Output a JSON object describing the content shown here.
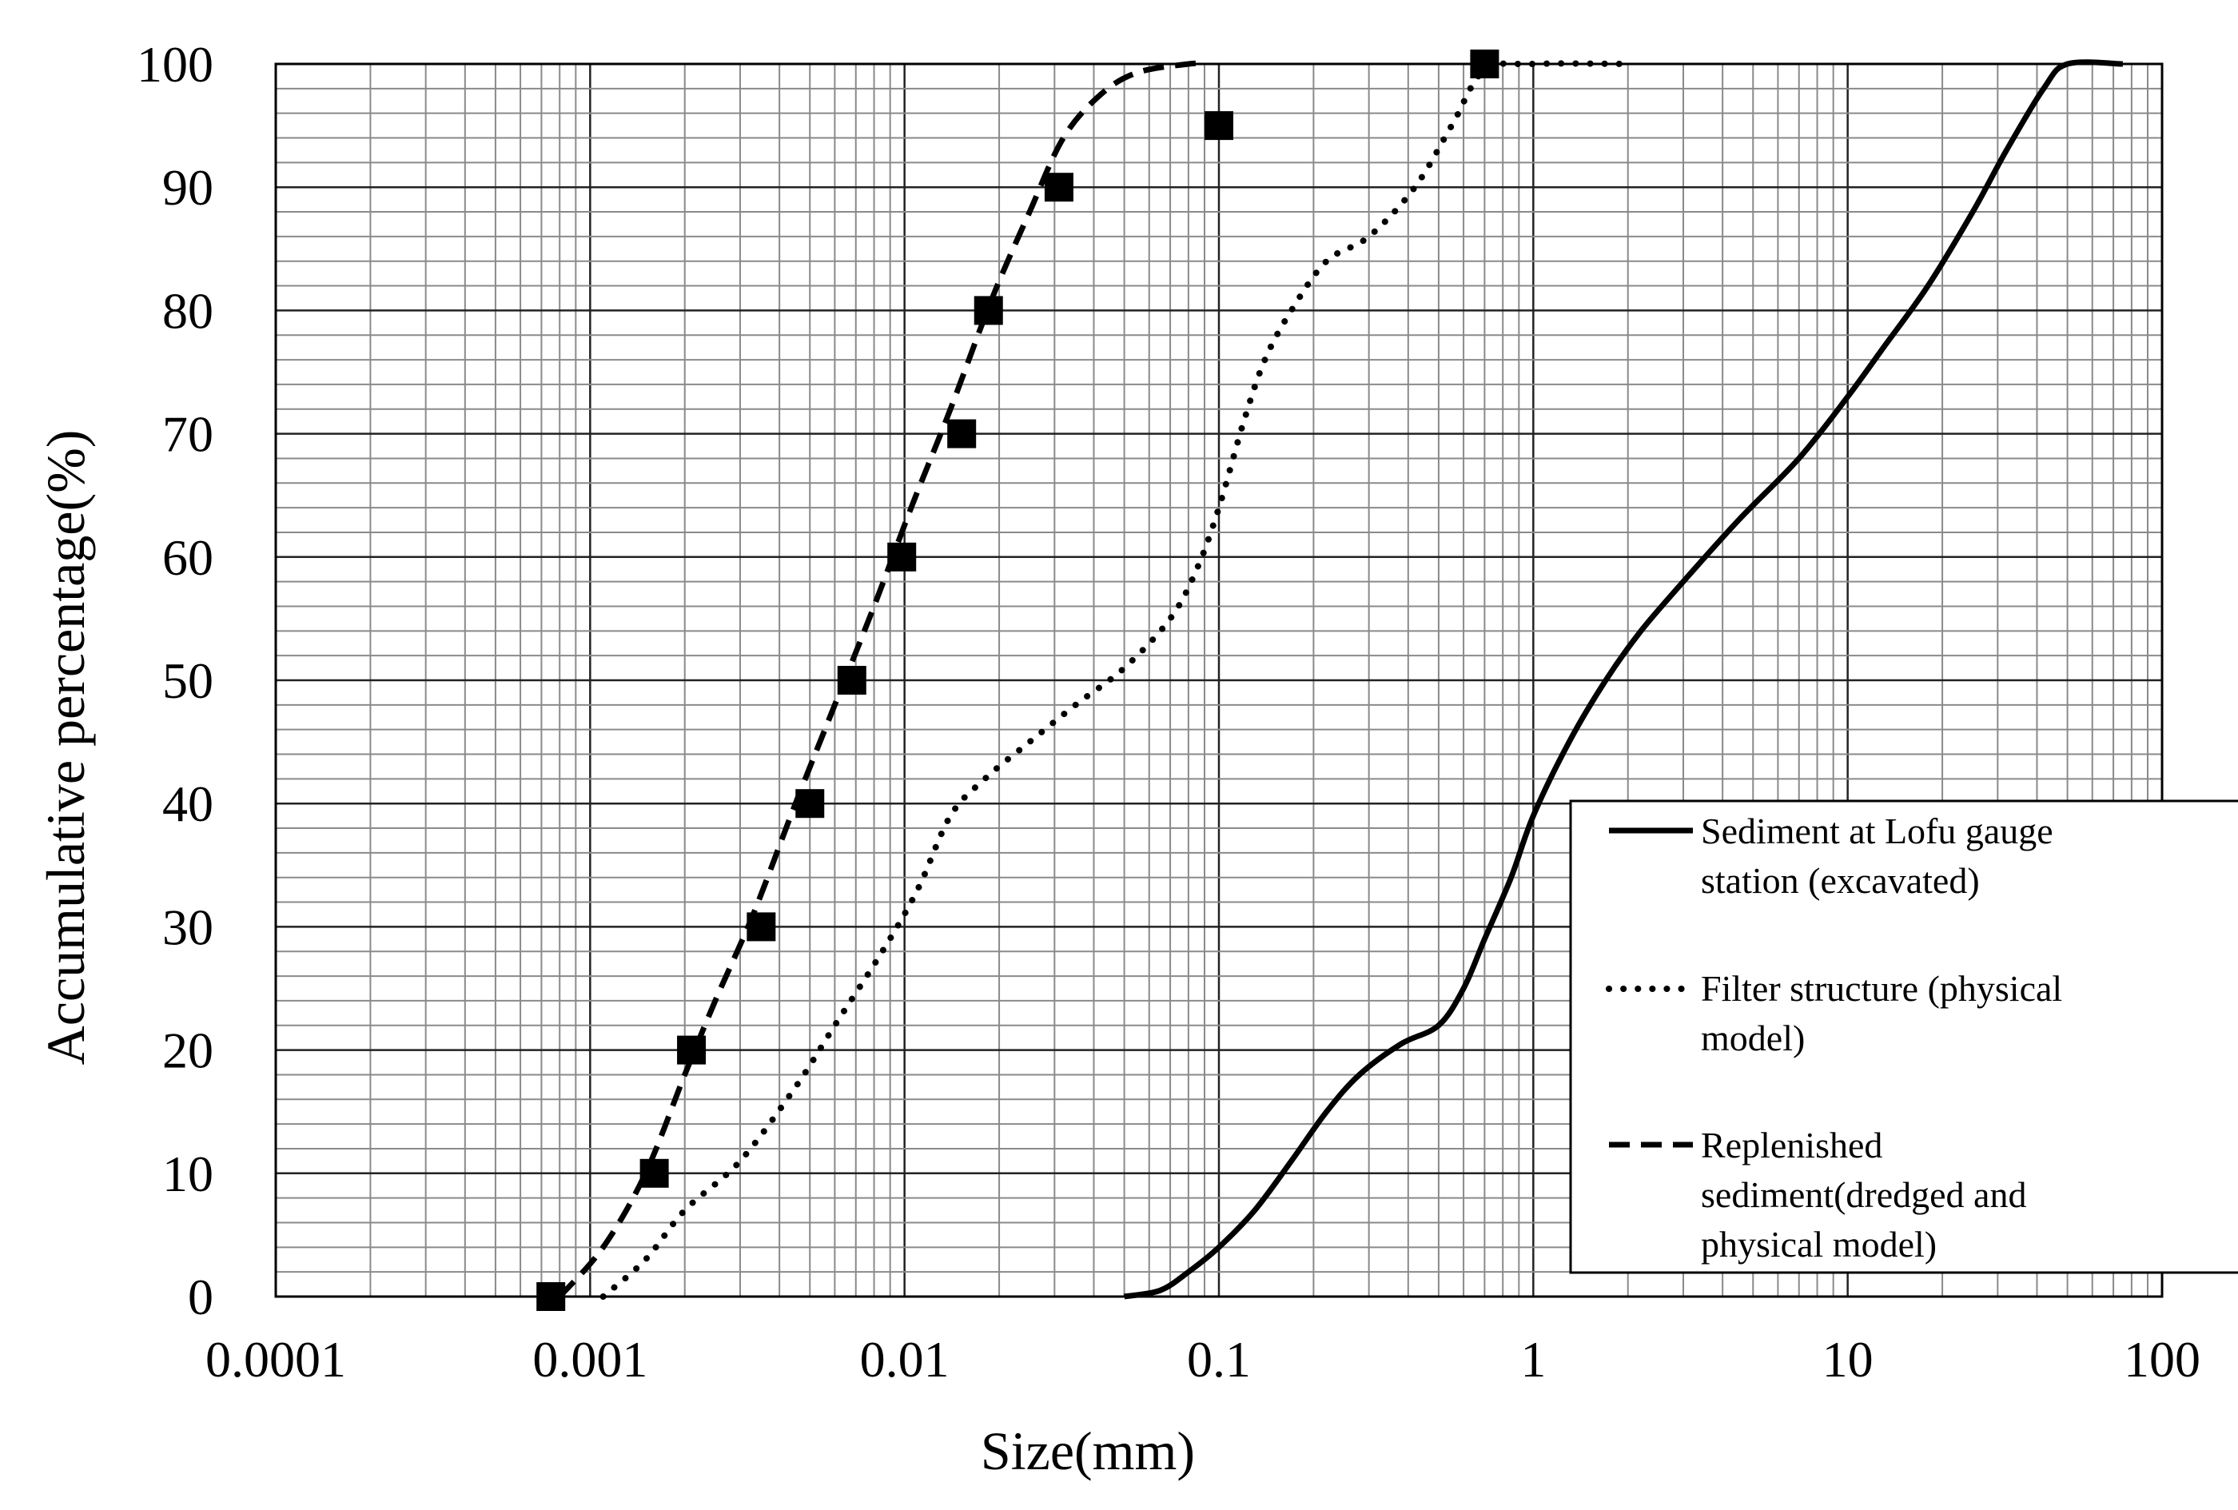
{
  "chart_data": {
    "type": "line",
    "xlabel": "Size(mm)",
    "ylabel": "Accumulative percentage(%)",
    "xscale": "log",
    "xlim": [
      0.0001,
      100
    ],
    "ylim": [
      0,
      100
    ],
    "x_ticks": [
      "0.0001",
      "0.001",
      "0.01",
      "0.1",
      "1",
      "10",
      "100"
    ],
    "y_ticks": [
      "0",
      "10",
      "20",
      "30",
      "40",
      "50",
      "60",
      "70",
      "80",
      "90",
      "100"
    ],
    "grid": true,
    "legend_position": "bottom-right",
    "series": [
      {
        "name": "Sediment at Lofu gauge station (excavated)",
        "style": "solid",
        "color": "#000000",
        "points": [
          [
            0.05,
            0
          ],
          [
            0.065,
            0.5
          ],
          [
            0.08,
            2
          ],
          [
            0.1,
            4
          ],
          [
            0.13,
            7
          ],
          [
            0.17,
            11
          ],
          [
            0.22,
            15
          ],
          [
            0.28,
            18
          ],
          [
            0.38,
            20.5
          ],
          [
            0.5,
            22
          ],
          [
            0.6,
            25
          ],
          [
            0.7,
            29
          ],
          [
            0.85,
            34
          ],
          [
            1.0,
            39
          ],
          [
            1.3,
            45
          ],
          [
            1.7,
            50
          ],
          [
            2.2,
            54
          ],
          [
            3.0,
            58
          ],
          [
            4.5,
            63
          ],
          [
            7,
            68
          ],
          [
            10,
            73
          ],
          [
            13,
            77
          ],
          [
            18,
            82
          ],
          [
            25,
            88
          ],
          [
            32,
            93
          ],
          [
            42,
            98
          ],
          [
            50,
            100
          ],
          [
            75,
            100
          ]
        ]
      },
      {
        "name": "Filter structure (physical model)",
        "style": "dotted",
        "color": "#000000",
        "points": [
          [
            0.0011,
            0
          ],
          [
            0.0015,
            3
          ],
          [
            0.002,
            7
          ],
          [
            0.003,
            11
          ],
          [
            0.0045,
            17
          ],
          [
            0.006,
            22
          ],
          [
            0.0085,
            28
          ],
          [
            0.011,
            33
          ],
          [
            0.014,
            39
          ],
          [
            0.018,
            42
          ],
          [
            0.025,
            45
          ],
          [
            0.035,
            48
          ],
          [
            0.05,
            51
          ],
          [
            0.07,
            55
          ],
          [
            0.085,
            59
          ],
          [
            0.1,
            64
          ],
          [
            0.12,
            71
          ],
          [
            0.14,
            76
          ],
          [
            0.17,
            80
          ],
          [
            0.22,
            84
          ],
          [
            0.3,
            86
          ],
          [
            0.42,
            90
          ],
          [
            0.55,
            95
          ],
          [
            0.7,
            99.5
          ],
          [
            1.0,
            100
          ],
          [
            2.0,
            100
          ]
        ]
      },
      {
        "name": "Replenished sediment(dredged and physical model)",
        "style": "dashed",
        "color": "#000000",
        "points": [
          [
            0.0008,
            0
          ],
          [
            0.0011,
            4
          ],
          [
            0.0015,
            10
          ],
          [
            0.002,
            18
          ],
          [
            0.0025,
            24
          ],
          [
            0.0033,
            31
          ],
          [
            0.0045,
            40
          ],
          [
            0.006,
            48
          ],
          [
            0.008,
            56
          ],
          [
            0.0105,
            64
          ],
          [
            0.014,
            72
          ],
          [
            0.019,
            81
          ],
          [
            0.025,
            88
          ],
          [
            0.032,
            94
          ],
          [
            0.042,
            97.5
          ],
          [
            0.055,
            99.3
          ],
          [
            0.08,
            100
          ],
          [
            0.09,
            100
          ]
        ]
      },
      {
        "name": "",
        "style": "markers",
        "marker": "square",
        "color": "#000000",
        "points": [
          [
            0.00075,
            0
          ],
          [
            0.0016,
            10
          ],
          [
            0.0021,
            20
          ],
          [
            0.0035,
            30
          ],
          [
            0.005,
            40
          ],
          [
            0.0068,
            50
          ],
          [
            0.0098,
            60
          ],
          [
            0.0152,
            70
          ],
          [
            0.0185,
            80
          ],
          [
            0.031,
            90
          ],
          [
            0.1,
            95
          ],
          [
            0.7,
            100
          ]
        ]
      }
    ]
  }
}
